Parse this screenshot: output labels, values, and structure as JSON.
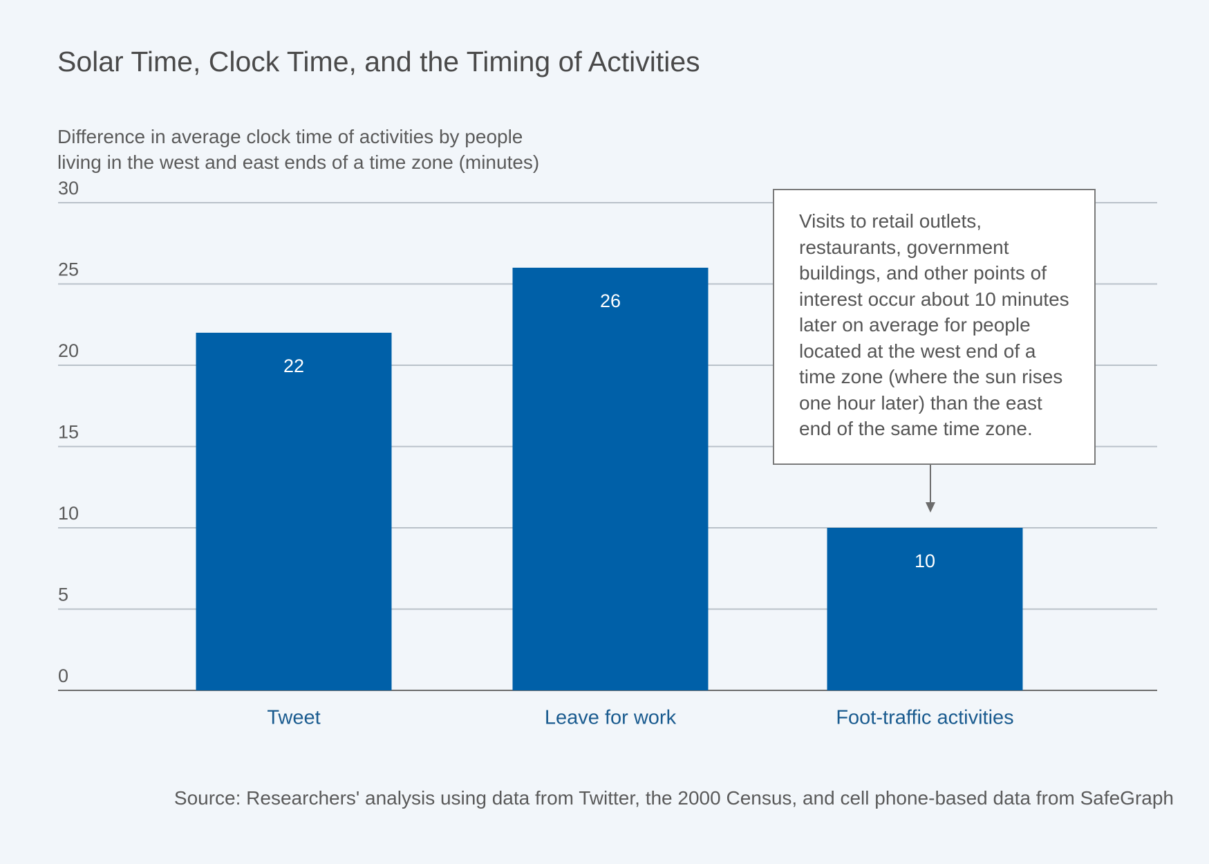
{
  "chart_data": {
    "type": "bar",
    "title": "Solar Time, Clock Time, and the Timing of Activities",
    "y_label": "Difference in average clock time of activities by people living in the west and east ends of a time zone (minutes)",
    "categories": [
      "Tweet",
      "Leave for work",
      "Foot-traffic activities"
    ],
    "values": [
      22,
      26,
      10
    ],
    "color": "#0060a8",
    "ylim": [
      0,
      30
    ],
    "yticks": [
      0,
      5,
      10,
      15,
      20,
      25,
      30
    ],
    "grid": true,
    "annotation": "Visits to retail outlets, restaurants, government buildings, and other points of interest occur about 10 minutes later on average for people located at the west end of a time zone (where the sun rises one hour later) than the east end of the same time zone.",
    "source": "Source: Researchers' analysis using data from Twitter, the 2000 Census, and cell phone-based data from SafeGraph"
  }
}
